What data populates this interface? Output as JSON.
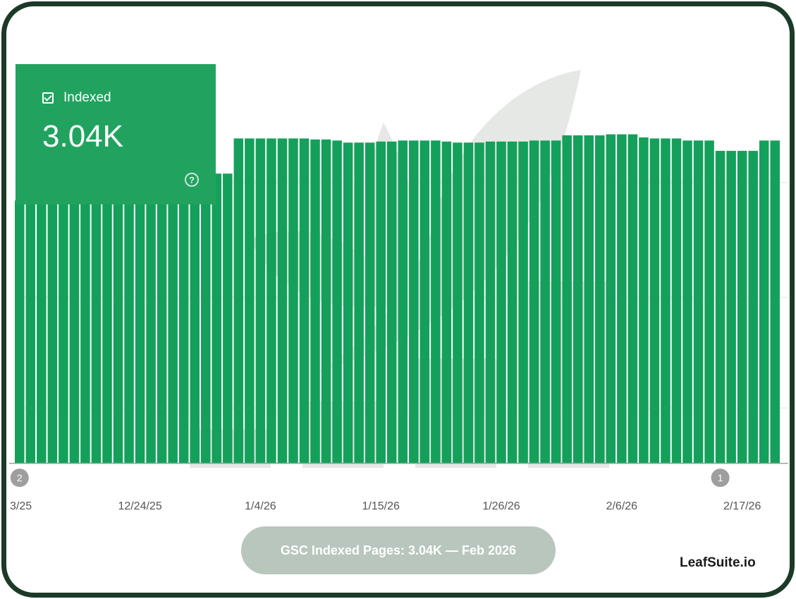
{
  "card": {
    "label": "Indexed",
    "value": "3.04K",
    "help_icon": "question-circle-icon",
    "check_icon": "checkbox-checked-icon",
    "color": "#21a35f"
  },
  "caption": "GSC Indexed Pages: 3.04K — Feb 2026",
  "brand": "LeafSuite.io",
  "colors": {
    "bar": "#14a05a",
    "frame": "#1b3a27",
    "watermark": "#e6e8e6",
    "pill": "#b8c6bd"
  },
  "chart_data": {
    "type": "bar",
    "title": "",
    "xlabel": "",
    "ylabel": "",
    "ylim": [
      0,
      3600
    ],
    "grid": true,
    "x_tick_labels": [
      "3/25",
      "12/24/25",
      "1/4/26",
      "1/15/26",
      "1/26/26",
      "2/6/26",
      "2/17/26"
    ],
    "x_tick_label_bar_index": [
      0,
      11,
      22,
      33,
      44,
      55,
      66
    ],
    "annotations": [
      {
        "label": "2",
        "bar_index": 0
      },
      {
        "label": "1",
        "bar_index": 64
      }
    ],
    "series": [
      {
        "values": [
          2540,
          2550,
          2550,
          2550,
          2550,
          2550,
          2550,
          2550,
          2550,
          2550,
          2800,
          2800,
          2800,
          2800,
          2800,
          2800,
          2800,
          2800,
          2800,
          2800,
          3140,
          3140,
          3140,
          3140,
          3140,
          3140,
          3140,
          3130,
          3130,
          3120,
          3100,
          3100,
          3100,
          3110,
          3110,
          3120,
          3120,
          3120,
          3120,
          3110,
          3100,
          3100,
          3100,
          3110,
          3110,
          3110,
          3110,
          3120,
          3120,
          3120,
          3170,
          3170,
          3170,
          3170,
          3180,
          3180,
          3180,
          3150,
          3140,
          3140,
          3140,
          3120,
          3120,
          3120,
          3020,
          3020,
          3020,
          3020,
          3120,
          3120
        ]
      }
    ]
  }
}
